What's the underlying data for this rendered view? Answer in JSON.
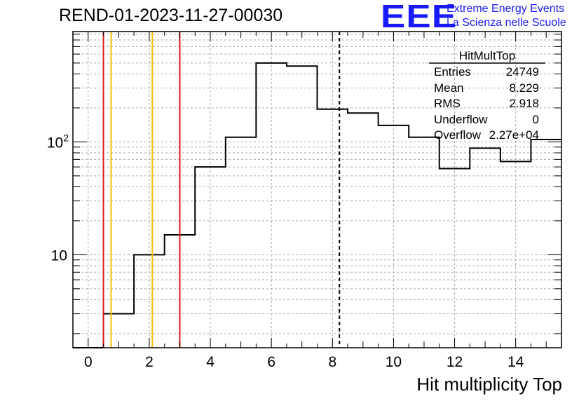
{
  "header": {
    "run_title": "REND-01-2023-11-27-00030",
    "logo_text": "EEE",
    "logo_line1": "Extreme Energy Events",
    "logo_line2": "La Scienza nelle Scuole",
    "logo_color": "#1a1aff"
  },
  "stats": {
    "title": "HitMultTop",
    "rows": [
      {
        "key": "Entries",
        "value": "24749"
      },
      {
        "key": "Mean",
        "value": "8.229"
      },
      {
        "key": "RMS",
        "value": "2.918"
      },
      {
        "key": "Underflow",
        "value": "0"
      },
      {
        "key": "Overflow",
        "value": "2.27e+04"
      }
    ]
  },
  "chart_data": {
    "type": "histogram",
    "xlabel": "Hit multiplicity Top",
    "ylabel": "",
    "xlim": [
      -0.5,
      15.5
    ],
    "ylim": [
      1.5,
      950
    ],
    "yscale": "log",
    "grid": true,
    "x_ticks": [
      0,
      2,
      4,
      6,
      8,
      10,
      12,
      14
    ],
    "y_tick_labels": [
      {
        "value": 10,
        "label": "10"
      },
      {
        "value": 100,
        "label": "10^2"
      }
    ],
    "bins": [
      {
        "lo": -0.5,
        "hi": 0.5,
        "value": 0
      },
      {
        "lo": 0.5,
        "hi": 1.5,
        "value": 3
      },
      {
        "lo": 1.5,
        "hi": 2.5,
        "value": 10
      },
      {
        "lo": 2.5,
        "hi": 3.5,
        "value": 15
      },
      {
        "lo": 3.5,
        "hi": 4.5,
        "value": 60
      },
      {
        "lo": 4.5,
        "hi": 5.5,
        "value": 110
      },
      {
        "lo": 5.5,
        "hi": 6.5,
        "value": 500
      },
      {
        "lo": 6.5,
        "hi": 7.5,
        "value": 470
      },
      {
        "lo": 7.5,
        "hi": 8.5,
        "value": 195
      },
      {
        "lo": 8.5,
        "hi": 9.5,
        "value": 180
      },
      {
        "lo": 9.5,
        "hi": 10.5,
        "value": 140
      },
      {
        "lo": 10.5,
        "hi": 11.5,
        "value": 110
      },
      {
        "lo": 11.5,
        "hi": 12.5,
        "value": 58
      },
      {
        "lo": 12.5,
        "hi": 13.5,
        "value": 88
      },
      {
        "lo": 13.5,
        "hi": 14.5,
        "value": 67
      },
      {
        "lo": 14.5,
        "hi": 15.5,
        "value": 105
      }
    ],
    "vertical_lines": [
      {
        "x": 0.5,
        "color": "#e41a1a",
        "style": "solid"
      },
      {
        "x": 0.75,
        "color": "#f5c000",
        "style": "solid"
      },
      {
        "x": 2.1,
        "color": "#f5c000",
        "style": "solid"
      },
      {
        "x": 3.0,
        "color": "#e41a1a",
        "style": "solid"
      },
      {
        "x": 8.229,
        "color": "#000000",
        "style": "dashed"
      }
    ]
  }
}
